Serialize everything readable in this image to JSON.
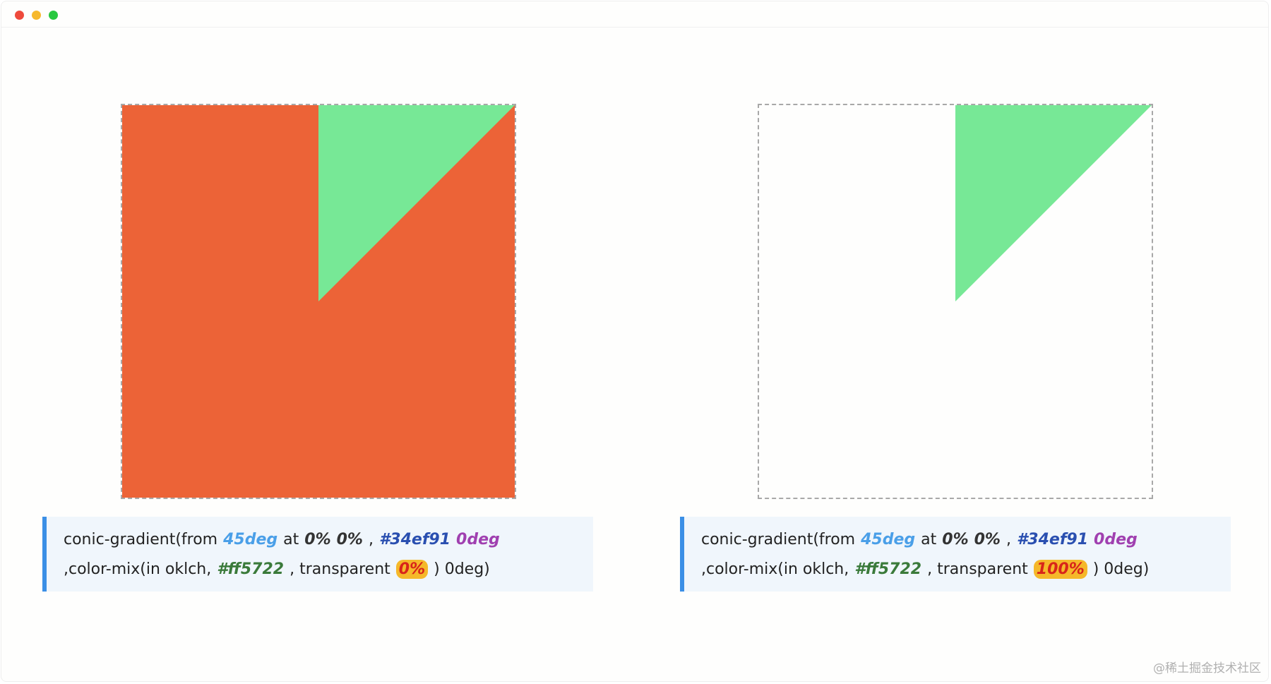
{
  "panels": [
    {
      "lines": [
        [
          "conic-gradient(from",
          "45deg",
          "at",
          "0%",
          "0%",
          ",",
          "#34ef91",
          "0deg"
        ],
        [
          ",color-mix(in oklch,",
          "#ff5722",
          ", transparent",
          "0%",
          ") 0deg)"
        ]
      ]
    },
    {
      "lines": [
        [
          "conic-gradient(from",
          "45deg",
          "at",
          "0%",
          "0%",
          ",",
          "#34ef91",
          "0deg"
        ],
        [
          ",color-mix(in oklch,",
          "#ff5722",
          ", transparent",
          "100%",
          ") 0deg)"
        ]
      ]
    }
  ],
  "watermark": "@稀土掘金技术社区"
}
